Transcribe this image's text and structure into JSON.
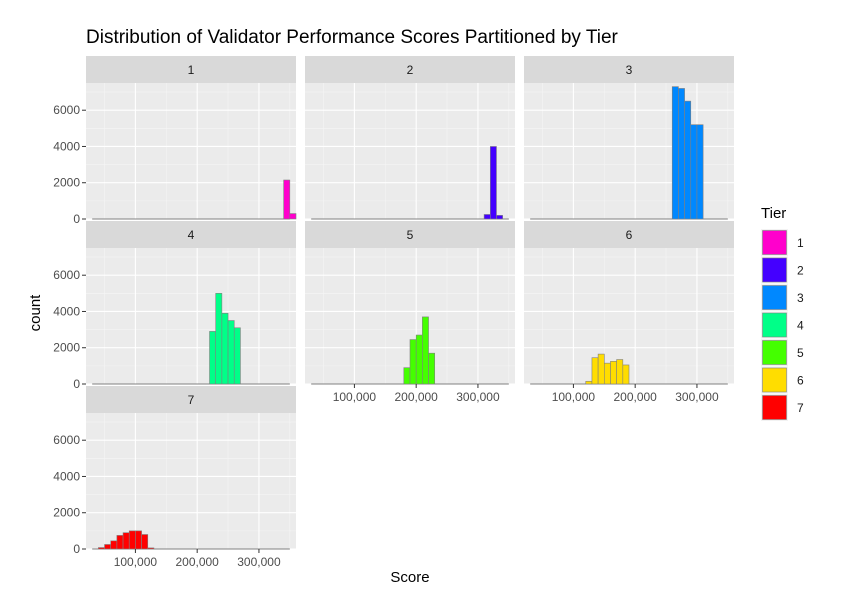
{
  "chart_data": {
    "type": "bar",
    "subtype": "histogram-facets",
    "title": "Distribution of Validator Performance Scores Partitioned by Tier",
    "xlabel": "Score",
    "ylabel": "count",
    "xlim": [
      20000,
      360000
    ],
    "ylim": [
      0,
      7500
    ],
    "x_ticks": [
      100000,
      200000,
      300000
    ],
    "x_tick_labels": [
      "100,000",
      "200,000",
      "300,000"
    ],
    "y_ticks": [
      0,
      2000,
      4000,
      6000
    ],
    "y_tick_labels": [
      "0",
      "2000",
      "4000",
      "6000"
    ],
    "bin_width": 10000,
    "grid": true,
    "legend": {
      "title": "Tier",
      "position": "right",
      "entries": [
        {
          "label": "1",
          "color": "#FF00CC"
        },
        {
          "label": "2",
          "color": "#4400FF"
        },
        {
          "label": "3",
          "color": "#0088FF"
        },
        {
          "label": "4",
          "color": "#00FF88"
        },
        {
          "label": "5",
          "color": "#44FF00"
        },
        {
          "label": "6",
          "color": "#FFDD00"
        },
        {
          "label": "7",
          "color": "#FF0000"
        }
      ]
    },
    "facets": [
      {
        "label": "1",
        "color": "#FF00CC",
        "bins": [
          {
            "x0": 340000,
            "x1": 350000,
            "count": 2150
          },
          {
            "x0": 350000,
            "x1": 360000,
            "count": 300
          }
        ]
      },
      {
        "label": "2",
        "color": "#4400FF",
        "bins": [
          {
            "x0": 310000,
            "x1": 320000,
            "count": 250
          },
          {
            "x0": 320000,
            "x1": 330000,
            "count": 4000
          },
          {
            "x0": 330000,
            "x1": 340000,
            "count": 200
          }
        ]
      },
      {
        "label": "3",
        "color": "#0088FF",
        "bins": [
          {
            "x0": 260000,
            "x1": 270000,
            "count": 7300
          },
          {
            "x0": 270000,
            "x1": 280000,
            "count": 7200
          },
          {
            "x0": 280000,
            "x1": 290000,
            "count": 6500
          },
          {
            "x0": 290000,
            "x1": 300000,
            "count": 5200
          },
          {
            "x0": 300000,
            "x1": 310000,
            "count": 5200
          }
        ]
      },
      {
        "label": "4",
        "color": "#00FF88",
        "bins": [
          {
            "x0": 220000,
            "x1": 230000,
            "count": 2900
          },
          {
            "x0": 230000,
            "x1": 240000,
            "count": 5000
          },
          {
            "x0": 240000,
            "x1": 250000,
            "count": 3900
          },
          {
            "x0": 250000,
            "x1": 260000,
            "count": 3500
          },
          {
            "x0": 260000,
            "x1": 270000,
            "count": 3100
          }
        ]
      },
      {
        "label": "5",
        "color": "#44FF00",
        "bins": [
          {
            "x0": 180000,
            "x1": 190000,
            "count": 900
          },
          {
            "x0": 190000,
            "x1": 200000,
            "count": 2450
          },
          {
            "x0": 200000,
            "x1": 210000,
            "count": 2700
          },
          {
            "x0": 210000,
            "x1": 220000,
            "count": 3700
          },
          {
            "x0": 220000,
            "x1": 230000,
            "count": 1700
          }
        ]
      },
      {
        "label": "6",
        "color": "#FFDD00",
        "bins": [
          {
            "x0": 120000,
            "x1": 130000,
            "count": 150
          },
          {
            "x0": 130000,
            "x1": 140000,
            "count": 1450
          },
          {
            "x0": 140000,
            "x1": 150000,
            "count": 1650
          },
          {
            "x0": 150000,
            "x1": 160000,
            "count": 1150
          },
          {
            "x0": 160000,
            "x1": 170000,
            "count": 1250
          },
          {
            "x0": 170000,
            "x1": 180000,
            "count": 1350
          },
          {
            "x0": 180000,
            "x1": 190000,
            "count": 1050
          }
        ]
      },
      {
        "label": "7",
        "color": "#FF0000",
        "bins": [
          {
            "x0": 40000,
            "x1": 50000,
            "count": 80
          },
          {
            "x0": 50000,
            "x1": 60000,
            "count": 250
          },
          {
            "x0": 60000,
            "x1": 70000,
            "count": 450
          },
          {
            "x0": 70000,
            "x1": 80000,
            "count": 750
          },
          {
            "x0": 80000,
            "x1": 90000,
            "count": 900
          },
          {
            "x0": 90000,
            "x1": 100000,
            "count": 1000
          },
          {
            "x0": 100000,
            "x1": 110000,
            "count": 1000
          },
          {
            "x0": 110000,
            "x1": 120000,
            "count": 800
          },
          {
            "x0": 120000,
            "x1": 130000,
            "count": 60
          }
        ]
      }
    ]
  }
}
